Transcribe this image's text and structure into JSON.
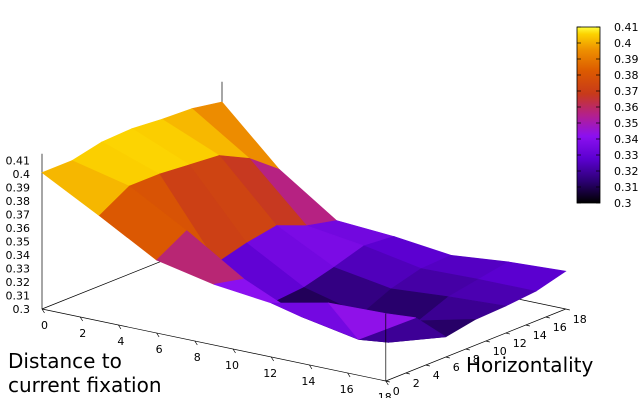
{
  "chart_data": {
    "type": "surface3d",
    "title": "",
    "xlabel": [
      "Distance to",
      "current fixation"
    ],
    "ylabel": "Horizontality",
    "x": [
      0,
      3,
      6,
      9,
      12,
      15,
      18
    ],
    "y": [
      0,
      3,
      6,
      9,
      12,
      15,
      18
    ],
    "z": [
      [
        0.401,
        0.401,
        0.406,
        0.407,
        0.405,
        0.404,
        0.4
      ],
      [
        0.378,
        0.391,
        0.391,
        0.389,
        0.387,
        0.376,
        0.359
      ],
      [
        0.354,
        0.367,
        0.334,
        0.34,
        0.344,
        0.335,
        0.33
      ],
      [
        0.345,
        0.34,
        0.314,
        0.316,
        0.322,
        0.329,
        0.327
      ],
      [
        0.34,
        0.321,
        0.304,
        0.305,
        0.315,
        0.321,
        0.322
      ],
      [
        0.349,
        0.313,
        0.302,
        0.309,
        0.318,
        0.322,
        0.326
      ],
      [
        0.35,
        0.338,
        0.315,
        0.319,
        0.32,
        0.322,
        0.328
      ]
    ],
    "zlim": [
      0.3,
      0.41
    ],
    "xlim": [
      0,
      18
    ],
    "ylim": [
      0,
      18
    ],
    "x_ticks": [
      "0",
      "2",
      "4",
      "6",
      "8",
      "10",
      "12",
      "14",
      "16",
      "18"
    ],
    "y_ticks": [
      "0",
      "2",
      "4",
      "6",
      "8",
      "10",
      "12",
      "14",
      "16",
      "18"
    ],
    "z_ticks": [
      "0.3",
      "0.31",
      "0.32",
      "0.33",
      "0.34",
      "0.35",
      "0.36",
      "0.37",
      "0.38",
      "0.39",
      "0.4",
      "0.41"
    ],
    "colorbar_ticks": [
      "0.3",
      "0.31",
      "0.32",
      "0.33",
      "0.34",
      "0.35",
      "0.36",
      "0.37",
      "0.38",
      "0.39",
      "0.4",
      "0.41"
    ],
    "colormap": [
      "#000000",
      "#2a0070",
      "#5b00d0",
      "#8c10f0",
      "#b4208c",
      "#c83a1a",
      "#dc5a00",
      "#ee9000",
      "#fcd200",
      "#ffff40"
    ],
    "grid": false,
    "legend": "colorbar-right"
  }
}
